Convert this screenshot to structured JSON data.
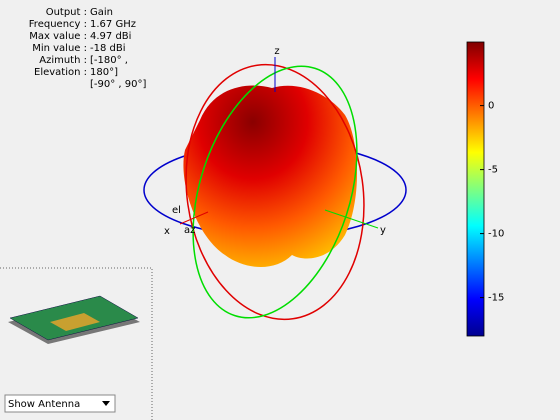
{
  "info": {
    "rows": [
      [
        "Output :",
        "Gain"
      ],
      [
        "Frequency :",
        "1.67 GHz"
      ],
      [
        "Max value :",
        "4.97 dBi"
      ],
      [
        "Min value :",
        "-18 dBi"
      ],
      [
        "Azimuth :",
        "[-180° ,"
      ],
      [
        "Elevation :",
        "180°]"
      ]
    ],
    "extra": "[-90° , 90°]"
  },
  "axes": {
    "z": "z",
    "x": "x",
    "y": "y",
    "el": "el",
    "az": "az"
  },
  "colorbar": {
    "lim": [
      -18,
      4.97
    ],
    "ticks": [
      0,
      -5,
      -10,
      -15
    ]
  },
  "dropdown": {
    "label": "Show Antenna"
  }
}
